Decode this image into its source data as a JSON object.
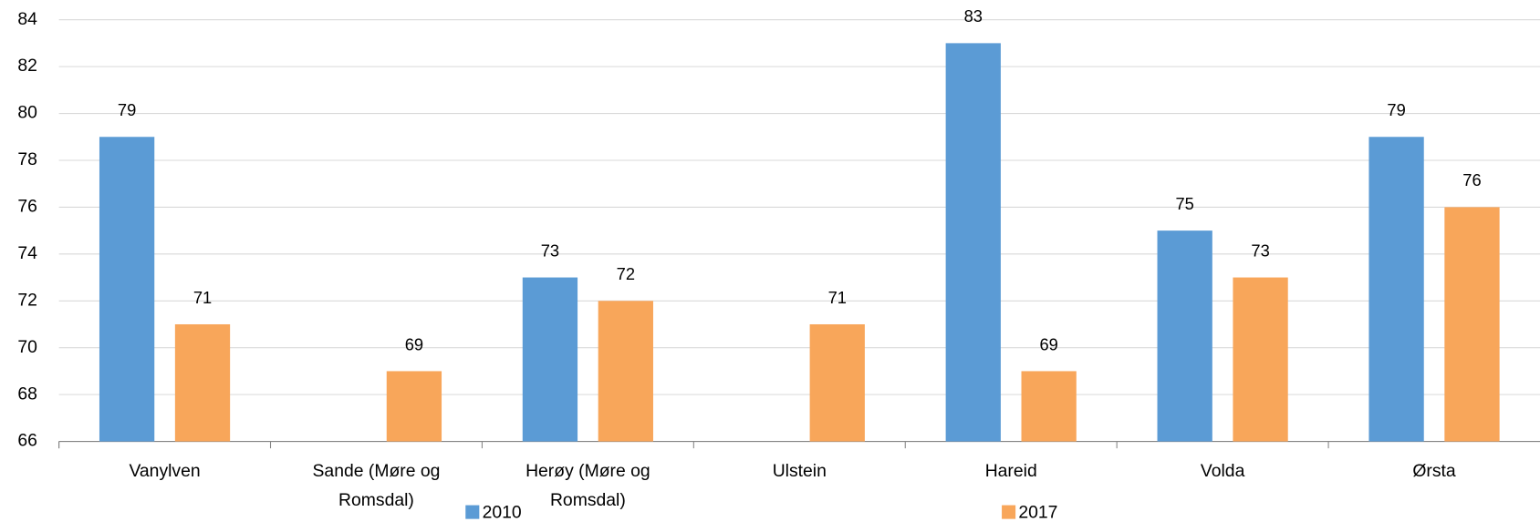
{
  "chart_data": {
    "type": "bar",
    "categories": [
      "Vanylven",
      "Sande (Møre og Romsdal)",
      "Herøy (Møre og Romsdal)",
      "Ulstein",
      "Hareid",
      "Volda",
      "Ørsta"
    ],
    "series": [
      {
        "name": "2010",
        "color": "#5b9bd5",
        "values": [
          79,
          null,
          73,
          null,
          83,
          75,
          79
        ]
      },
      {
        "name": "2017",
        "color": "#f8a65a",
        "values": [
          71,
          69,
          72,
          71,
          69,
          73,
          76
        ]
      }
    ],
    "ylim": [
      66,
      84
    ],
    "yticks": [
      66,
      68,
      70,
      72,
      74,
      76,
      78,
      80,
      82,
      84
    ],
    "grid": true,
    "legend": "bottom",
    "data_labels": true
  }
}
